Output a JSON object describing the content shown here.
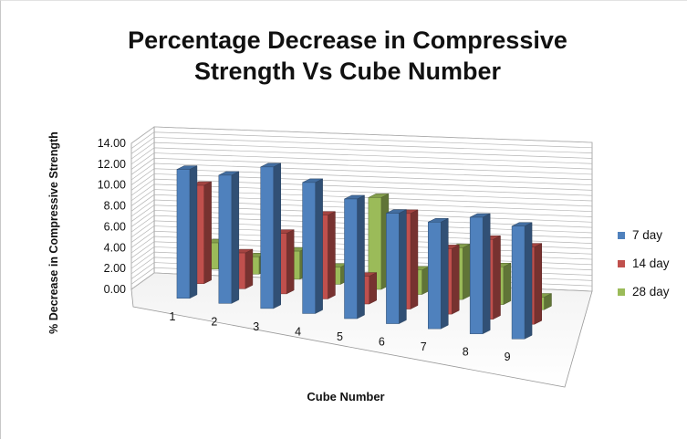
{
  "chart_data": {
    "type": "bar",
    "title": "Percentage Decrease in Compressive Strength Vs Cube Number",
    "xlabel": "Cube Number",
    "ylabel": "% Decrease in Compressive Strength",
    "ylim": [
      0,
      14
    ],
    "yticks": [
      "0.00",
      "2.00",
      "4.00",
      "6.00",
      "8.00",
      "10.00",
      "12.00",
      "14.00"
    ],
    "categories": [
      "1",
      "2",
      "3",
      "4",
      "5",
      "6",
      "7",
      "8",
      "9"
    ],
    "series": [
      {
        "name": "7 day",
        "color": "#4f81bd",
        "values": [
          11.8,
          11.8,
          13.1,
          12.2,
          11.2,
          10.4,
          10.1,
          11.1,
          10.8
        ]
      },
      {
        "name": "14 day",
        "color": "#c0504d",
        "values": [
          9.0,
          3.3,
          5.6,
          7.8,
          2.6,
          9.0,
          6.2,
          7.6,
          7.4
        ]
      },
      {
        "name": "28 day",
        "color": "#9bbb59",
        "values": [
          2.4,
          1.6,
          2.6,
          1.6,
          8.6,
          2.3,
          4.9,
          3.6,
          1.2
        ]
      }
    ],
    "grid": true,
    "legend": "right"
  }
}
